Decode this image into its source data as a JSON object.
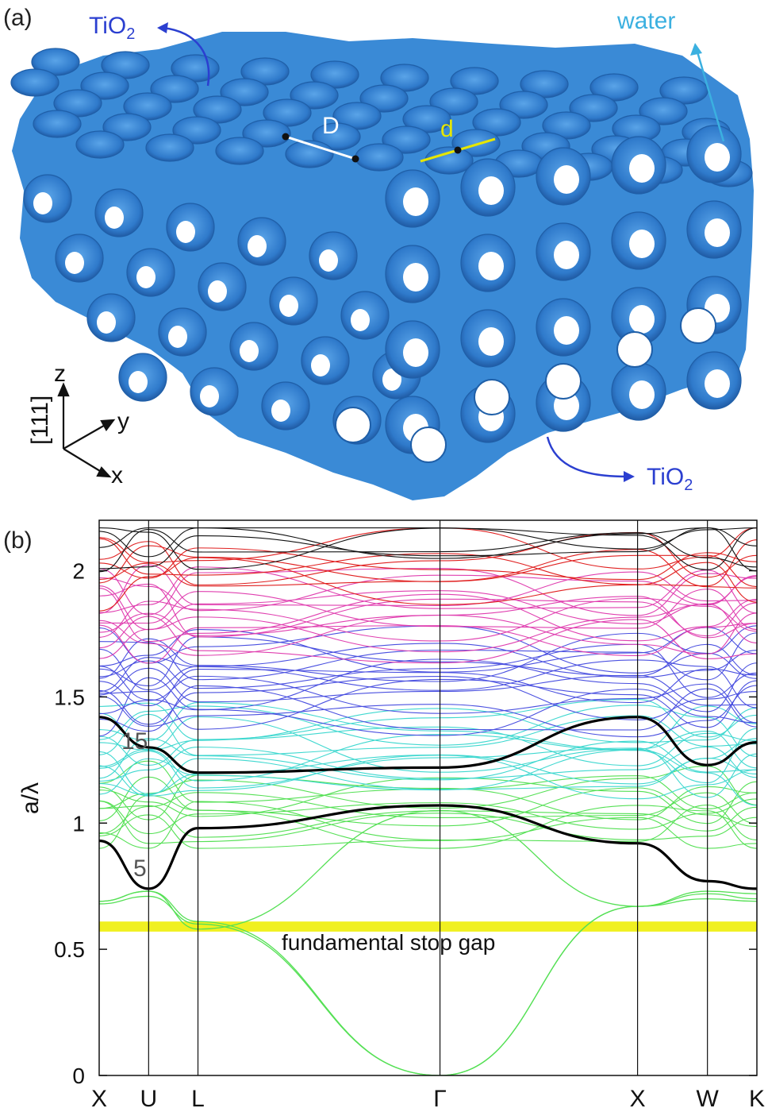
{
  "panel_a": {
    "label": "(a)",
    "labels": {
      "tio2_top": "TiO",
      "tio2_bottom": "TiO",
      "subscript": "2",
      "water": "water",
      "D": "D",
      "d": "d"
    },
    "axes": {
      "z": "z",
      "y": "y",
      "x": "x",
      "direction": "[111]"
    },
    "colors": {
      "structure": "#3a8ad6",
      "hole": "#ffffff",
      "shadow": "#1f5fa8",
      "tio2_label": "#2b3fd0",
      "water_label": "#3bb0e0",
      "d_line": "#e6e600"
    }
  },
  "panel_b": {
    "label": "(b)",
    "annotation": "fundamental stop gap",
    "band_labels": [
      "15",
      "5"
    ]
  },
  "chart_data": {
    "type": "line",
    "xlabel": "",
    "ylabel": "a/λ",
    "ylim": [
      0,
      2.2
    ],
    "yticks": [
      0,
      0.5,
      1,
      1.5,
      2
    ],
    "ytick_labels": [
      "0",
      "0.5",
      "1",
      "1.5",
      "2"
    ],
    "kpoints": [
      "X",
      "U",
      "L",
      "Γ",
      "X",
      "W",
      "K"
    ],
    "kpoint_positions": [
      0,
      0.354,
      0.707,
      2.439,
      3.853,
      4.353,
      4.707
    ],
    "stop_gap": [
      0.57,
      0.61
    ],
    "highlighted_bands": [
      {
        "band": 5,
        "x": [
          0,
          0.354,
          0.707,
          2.439,
          3.853,
          4.353,
          4.707
        ],
        "y": [
          0.93,
          0.74,
          0.98,
          1.07,
          0.92,
          0.77,
          0.74
        ]
      },
      {
        "band": 15,
        "x": [
          0,
          0.354,
          0.707,
          2.439,
          3.853,
          4.353,
          4.707
        ],
        "y": [
          1.42,
          1.3,
          1.2,
          1.22,
          1.42,
          1.23,
          1.32
        ]
      }
    ],
    "low_bands": [
      {
        "x": [
          0,
          0.354,
          0.707,
          2.439,
          3.853,
          4.353,
          4.707
        ],
        "y": [
          0.68,
          0.71,
          0.6,
          0.0,
          0.67,
          0.7,
          0.69
        ]
      },
      {
        "x": [
          0,
          0.354,
          0.707,
          2.439,
          3.853,
          4.353,
          4.707
        ],
        "y": [
          0.69,
          0.73,
          0.61,
          0.0,
          0.67,
          0.72,
          0.7
        ]
      },
      {
        "x": [
          0,
          0.354,
          0.707,
          2.439,
          3.853,
          4.353,
          4.707
        ],
        "y": [
          0.69,
          0.73,
          0.58,
          1.05,
          0.67,
          0.73,
          0.72
        ]
      },
      {
        "x": [
          0,
          0.354,
          0.707,
          2.439,
          3.853,
          4.353,
          4.707
        ],
        "y": [
          0.93,
          0.74,
          0.98,
          1.07,
          0.92,
          0.77,
          0.74
        ]
      }
    ],
    "colors": {
      "stop_gap": "#f0f020",
      "low_band": "#55e055",
      "mid_band": "#40d8d0",
      "upper_band": "#4a50e0",
      "high_band": "#e040b0",
      "top_band": "#e02020",
      "highest_band": "#111111",
      "highlight": "#000000"
    }
  }
}
